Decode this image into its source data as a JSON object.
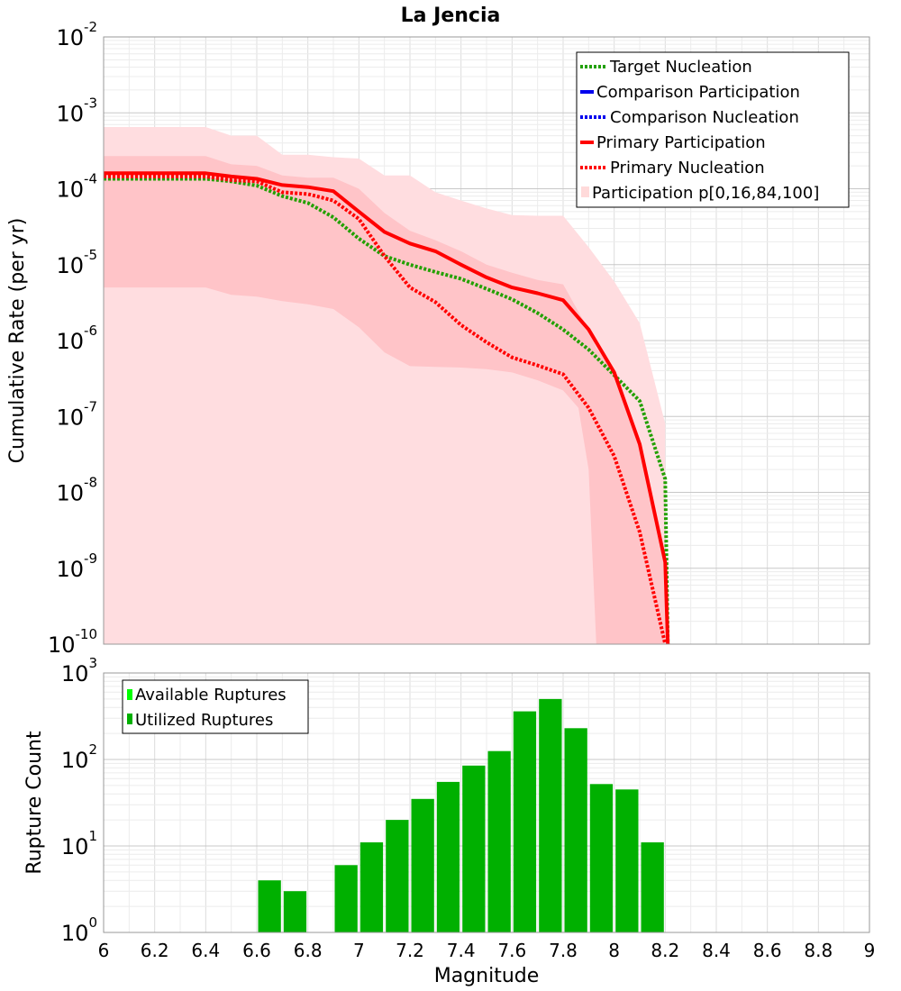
{
  "chart_data": [
    {
      "type": "line",
      "title": "La Jencia",
      "xlabel": "",
      "ylabel": "Cumulative Rate (per yr)",
      "xlim": [
        6,
        9
      ],
      "ylim": [
        1e-10,
        0.01
      ],
      "yscale": "log",
      "ytick_exponents": [
        "-2",
        "-3",
        "-4",
        "-5",
        "-6",
        "-7",
        "-8",
        "-9",
        "-10"
      ],
      "ytick_base": "10",
      "grid": true,
      "legend_position": "top-right",
      "legend": [
        {
          "label": "Target Nucleation",
          "color": "#22a000",
          "style": "dotted"
        },
        {
          "label": "Comparison Participation",
          "color": "#0000ee",
          "style": "solid"
        },
        {
          "label": "Comparison Nucleation",
          "color": "#0000ee",
          "style": "dotted"
        },
        {
          "label": "Primary Participation",
          "color": "#ff0000",
          "style": "solid"
        },
        {
          "label": "Primary Nucleation",
          "color": "#ff0000",
          "style": "dotted"
        },
        {
          "label": "Participation p[0,16,84,100]",
          "color": "#ffdada",
          "style": "band"
        }
      ],
      "bands": [
        {
          "name": "Participation p[0,100]",
          "color": "#ffdde0",
          "x": [
            6.0,
            6.4,
            6.5,
            6.6,
            6.7,
            6.8,
            6.9,
            7.0,
            7.1,
            7.2,
            7.3,
            7.4,
            7.5,
            7.6,
            7.7,
            7.8,
            7.9,
            8.0,
            8.1,
            8.2
          ],
          "upper": [
            0.00065,
            0.00065,
            0.0005,
            0.0005,
            0.00028,
            0.00028,
            0.00026,
            0.00025,
            0.00015,
            0.00015,
            9e-05,
            7e-05,
            5.5e-05,
            4.5e-05,
            4.4e-05,
            4.4e-05,
            1.7e-05,
            6e-06,
            1.7e-06,
            8e-08
          ],
          "lower": [
            1e-10,
            1e-10,
            1e-10,
            1e-10,
            1e-10,
            1e-10,
            1e-10,
            1e-10,
            1e-10,
            1e-10,
            1e-10,
            1e-10,
            1e-10,
            1e-10,
            1e-10,
            1e-10,
            1e-10,
            1e-10,
            1e-10,
            1e-10
          ]
        },
        {
          "name": "Participation p[16,84]",
          "color": "#ffc4c8",
          "x": [
            6.0,
            6.4,
            6.5,
            6.6,
            6.7,
            6.8,
            6.9,
            7.0,
            7.1,
            7.2,
            7.3,
            7.4,
            7.5,
            7.6,
            7.7,
            7.8,
            7.86,
            7.9,
            7.93,
            8.0,
            8.1,
            8.2
          ],
          "upper": [
            0.00027,
            0.00027,
            0.00021,
            0.0002,
            0.00015,
            0.00014,
            0.00014,
            0.0001,
            4.8e-05,
            2.8e-05,
            2.1e-05,
            1.5e-05,
            1e-05,
            7.8e-06,
            6.3e-06,
            5.5e-06,
            2.4e-06,
            1.4e-06,
            8e-07,
            4e-07,
            4e-08,
            1e-09
          ],
          "lower": [
            5e-06,
            5e-06,
            4e-06,
            3.8e-06,
            3.3e-06,
            3e-06,
            2.6e-06,
            1.5e-06,
            7e-07,
            4.6e-07,
            4.5e-07,
            4.4e-07,
            4.2e-07,
            3.8e-07,
            3e-07,
            2.2e-07,
            1.3e-07,
            2e-08,
            1e-10,
            1e-10,
            1e-10,
            1e-10
          ]
        }
      ],
      "series": [
        {
          "name": "Target Nucleation",
          "color": "#22a000",
          "style": "dotted",
          "x": [
            6.0,
            6.4,
            6.5,
            6.6,
            6.7,
            6.8,
            6.9,
            7.0,
            7.1,
            7.2,
            7.3,
            7.4,
            7.5,
            7.6,
            7.7,
            7.8,
            7.9,
            8.0,
            8.1,
            8.2,
            8.21
          ],
          "values": [
            0.000135,
            0.000135,
            0.000125,
            0.00011,
            8e-05,
            6.5e-05,
            4.2e-05,
            2.2e-05,
            1.3e-05,
            1e-05,
            8e-06,
            6.5e-06,
            4.8e-06,
            3.5e-06,
            2.3e-06,
            1.4e-06,
            7.6e-07,
            3.5e-07,
            1.6e-07,
            1.5e-08,
            1e-10
          ]
        },
        {
          "name": "Primary Nucleation",
          "color": "#ff0000",
          "style": "dotted",
          "x": [
            6.0,
            6.4,
            6.5,
            6.6,
            6.7,
            6.8,
            6.9,
            7.0,
            7.1,
            7.2,
            7.3,
            7.4,
            7.5,
            7.6,
            7.7,
            7.8,
            7.9,
            8.0,
            8.1,
            8.2
          ],
          "values": [
            0.000145,
            0.000145,
            0.00013,
            0.000125,
            9e-05,
            8.5e-05,
            7e-05,
            4e-05,
            1.3e-05,
            5e-06,
            3.2e-06,
            1.6e-06,
            9.5e-07,
            6e-07,
            4.7e-07,
            3.6e-07,
            1.3e-07,
            3e-08,
            3e-09,
            1e-10
          ]
        },
        {
          "name": "Primary Participation",
          "color": "#ff0000",
          "style": "solid",
          "x": [
            6.0,
            6.4,
            6.5,
            6.6,
            6.7,
            6.8,
            6.9,
            7.0,
            7.1,
            7.2,
            7.3,
            7.4,
            7.5,
            7.6,
            7.7,
            7.8,
            7.9,
            8.0,
            8.1,
            8.2,
            8.21
          ],
          "values": [
            0.00016,
            0.00016,
            0.000145,
            0.000135,
            0.000112,
            0.000105,
            9.3e-05,
            5e-05,
            2.7e-05,
            1.9e-05,
            1.5e-05,
            1e-05,
            6.8e-06,
            5e-06,
            4.2e-06,
            3.4e-06,
            1.4e-06,
            3.8e-07,
            4.3e-08,
            1.2e-09,
            1e-10
          ]
        }
      ]
    },
    {
      "type": "bar",
      "title": "",
      "xlabel": "Magnitude",
      "ylabel": "Rupture Count",
      "xlim": [
        6,
        9
      ],
      "ylim": [
        1,
        1000
      ],
      "yscale": "log",
      "ytick_exponents": [
        "3",
        "2",
        "1",
        "0"
      ],
      "ytick_base": "10",
      "xticks": [
        "6",
        "6.2",
        "6.4",
        "6.6",
        "6.8",
        "7",
        "7.2",
        "7.4",
        "7.6",
        "7.8",
        "8",
        "8.2",
        "8.4",
        "8.6",
        "8.8",
        "9"
      ],
      "bar_width": 0.1,
      "grid": true,
      "legend_position": "top-left",
      "legend": [
        {
          "label": "Available Ruptures",
          "color": "#00ff00"
        },
        {
          "label": "Utilized Ruptures",
          "color": "#00b000"
        }
      ],
      "series": [
        {
          "name": "Utilized Ruptures",
          "color": "#00b000",
          "x": [
            6.65,
            6.75,
            6.95,
            7.05,
            7.15,
            7.25,
            7.35,
            7.45,
            7.55,
            7.65,
            7.75,
            7.85,
            7.95,
            8.05,
            8.15
          ],
          "values": [
            4,
            3,
            6,
            11,
            20,
            35,
            55,
            85,
            125,
            360,
            500,
            230,
            52,
            45,
            11
          ]
        }
      ]
    }
  ]
}
